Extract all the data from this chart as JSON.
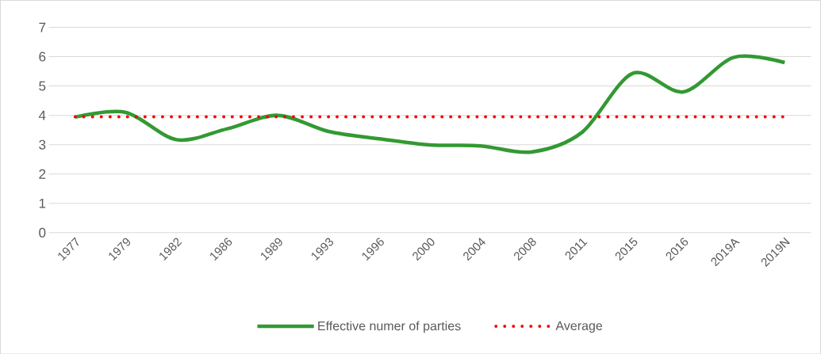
{
  "chart_data": {
    "type": "line",
    "categories": [
      "1977",
      "1979",
      "1982",
      "1986",
      "1989",
      "1993",
      "1996",
      "2000",
      "2004",
      "2008",
      "2011",
      "2015",
      "2016",
      "2019A",
      "2019N"
    ],
    "series": [
      {
        "name": "Effective numer of parties",
        "color": "#339933",
        "line_style": "solid",
        "values": [
          3.94,
          4.1,
          3.17,
          3.54,
          4.0,
          3.45,
          3.2,
          2.99,
          2.96,
          2.75,
          3.42,
          5.43,
          4.8,
          5.98,
          5.8
        ]
      },
      {
        "name": "Average",
        "color": "#ff0000",
        "line_style": "dotted",
        "values": [
          3.95,
          3.95,
          3.95,
          3.95,
          3.95,
          3.95,
          3.95,
          3.95,
          3.95,
          3.95,
          3.95,
          3.95,
          3.95,
          3.95,
          3.95
        ]
      }
    ],
    "ylim": [
      0,
      7
    ],
    "yticks": [
      0,
      1,
      2,
      3,
      4,
      5,
      6,
      7
    ],
    "grid": "y",
    "legend": "bottom",
    "marker": "none"
  }
}
